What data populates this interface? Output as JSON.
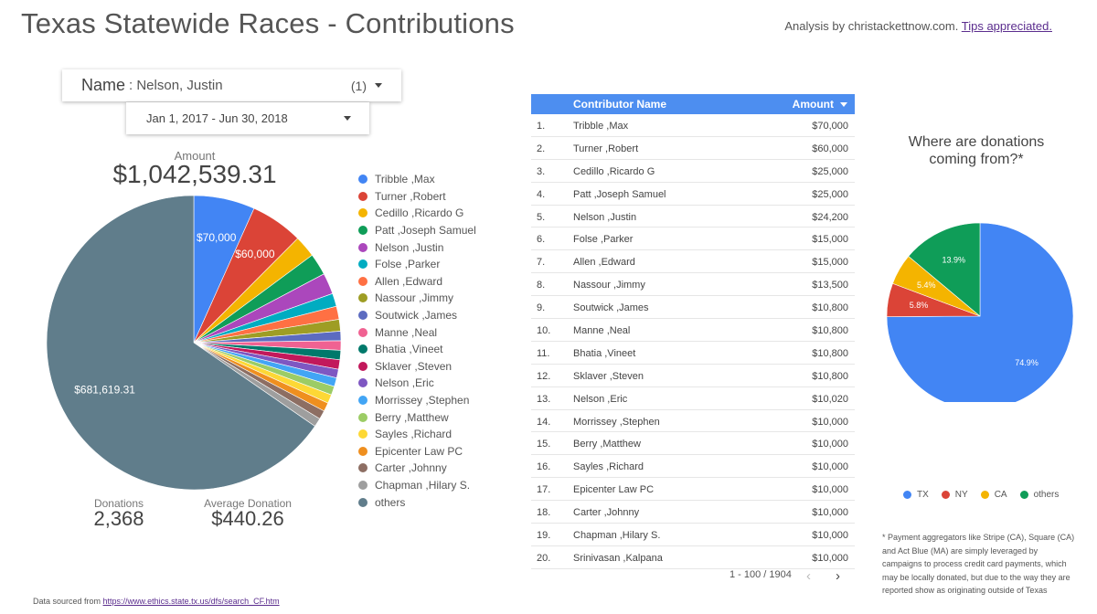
{
  "header": {
    "title": "Texas Statewide Races - Contributions",
    "analysis_prefix": "Analysis by christackettnow.com.",
    "tips_link": "Tips appreciated."
  },
  "filters": {
    "name_label": "Name",
    "name_value": ": Nelson, Justin",
    "name_count": "(1)",
    "date_range": "Jan 1, 2017 - Jun 30, 2018"
  },
  "kpis": {
    "amount_label": "Amount",
    "amount_value": "$1,042,539.31",
    "donations_label": "Donations",
    "donations_value": "2,368",
    "avg_label": "Average Donation",
    "avg_value": "$440.26"
  },
  "chart_data": [
    {
      "type": "pie",
      "categories": [
        "Tribble ,Max",
        "Turner ,Robert",
        "Cedillo ,Ricardo G",
        "Patt ,Joseph Samuel",
        "Nelson ,Justin",
        "Folse ,Parker",
        "Allen ,Edward",
        "Nassour ,Jimmy",
        "Soutwick ,James",
        "Manne ,Neal",
        "Bhatia ,Vineet",
        "Sklaver ,Steven",
        "Nelson ,Eric",
        "Morrissey ,Stephen",
        "Berry ,Matthew",
        "Sayles ,Richard",
        "Epicenter Law PC",
        "Carter ,Johnny",
        "Chapman ,Hilary S.",
        "others"
      ],
      "values": [
        70000,
        60000,
        25000,
        25000,
        24200,
        15000,
        15000,
        13500,
        10800,
        10800,
        10800,
        10800,
        10020,
        10000,
        10000,
        10000,
        10000,
        10000,
        10000,
        681619.31
      ],
      "slice_labels": [
        "$70,000",
        "$60,000",
        "",
        "",
        "",
        "",
        "",
        "",
        "",
        "",
        "",
        "",
        "",
        "",
        "",
        "",
        "",
        "",
        "",
        "$681,619.31"
      ],
      "colors": [
        "#4285f4",
        "#db4437",
        "#f4b400",
        "#0f9d58",
        "#ab47bc",
        "#00acc1",
        "#ff7043",
        "#9e9d24",
        "#5c6bc0",
        "#f06292",
        "#00796b",
        "#c2185b",
        "#7e57c2",
        "#42a5f5",
        "#9ccc65",
        "#fdd835",
        "#ef8f1f",
        "#8d6e63",
        "#9e9e9e",
        "#607d8b"
      ]
    },
    {
      "type": "pie",
      "title": "Where are donations coming from?*",
      "categories": [
        "TX",
        "NY",
        "CA",
        "others"
      ],
      "values": [
        74.9,
        5.8,
        5.4,
        13.9
      ],
      "slice_labels": [
        "74.9%",
        "5.8%",
        "5.4%",
        "13.9%"
      ],
      "colors": [
        "#4285f4",
        "#db4437",
        "#f4b400",
        "#0f9d58"
      ]
    }
  ],
  "table": {
    "col_name": "Contributor Name",
    "col_amount": "Amount",
    "rows": [
      {
        "n": "1.",
        "name": "Tribble ,Max",
        "amount": "$70,000"
      },
      {
        "n": "2.",
        "name": "Turner ,Robert",
        "amount": "$60,000"
      },
      {
        "n": "3.",
        "name": "Cedillo ,Ricardo G",
        "amount": "$25,000"
      },
      {
        "n": "4.",
        "name": "Patt ,Joseph Samuel",
        "amount": "$25,000"
      },
      {
        "n": "5.",
        "name": "Nelson ,Justin",
        "amount": "$24,200"
      },
      {
        "n": "6.",
        "name": "Folse ,Parker",
        "amount": "$15,000"
      },
      {
        "n": "7.",
        "name": "Allen ,Edward",
        "amount": "$15,000"
      },
      {
        "n": "8.",
        "name": "Nassour ,Jimmy",
        "amount": "$13,500"
      },
      {
        "n": "9.",
        "name": "Soutwick ,James",
        "amount": "$10,800"
      },
      {
        "n": "10.",
        "name": "Manne ,Neal",
        "amount": "$10,800"
      },
      {
        "n": "11.",
        "name": "Bhatia ,Vineet",
        "amount": "$10,800"
      },
      {
        "n": "12.",
        "name": "Sklaver ,Steven",
        "amount": "$10,800"
      },
      {
        "n": "13.",
        "name": "Nelson ,Eric",
        "amount": "$10,020"
      },
      {
        "n": "14.",
        "name": "Morrissey ,Stephen",
        "amount": "$10,000"
      },
      {
        "n": "15.",
        "name": "Berry ,Matthew",
        "amount": "$10,000"
      },
      {
        "n": "16.",
        "name": "Sayles ,Richard",
        "amount": "$10,000"
      },
      {
        "n": "17.",
        "name": "Epicenter Law PC",
        "amount": "$10,000"
      },
      {
        "n": "18.",
        "name": "Carter ,Johnny",
        "amount": "$10,000"
      },
      {
        "n": "19.",
        "name": "Chapman ,Hilary S.",
        "amount": "$10,000"
      },
      {
        "n": "20.",
        "name": "Srinivasan ,Kalpana",
        "amount": "$10,000"
      }
    ],
    "pagination": "1 - 100 / 1904"
  },
  "footnote": "* Payment aggregators like Stripe (CA), Square (CA) and Act Blue (MA) are simply leveraged by campaigns to process credit card payments, which may be locally donated, but due to the way they are reported show as originating outside of Texas",
  "source": {
    "prefix": "Data sourced from",
    "link": "https://www.ethics.state.tx.us/dfs/search_CF.htm"
  }
}
